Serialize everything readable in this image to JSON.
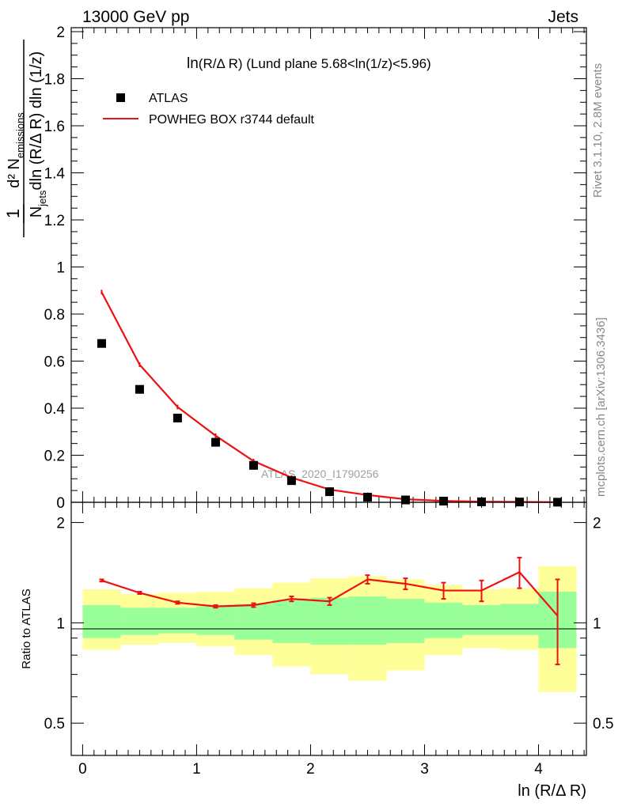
{
  "header": {
    "left": "13000 GeV pp",
    "right": "Jets"
  },
  "side_labels": {
    "rivet": "Rivet 3.1.10,  2.8M events",
    "mcplots": "mcplots.cern.ch [arXiv:1306.3436]"
  },
  "watermark": "ATLAS_2020_I1790256",
  "chart_data": [
    {
      "type": "scatter",
      "title_main": "ln",
      "title_rest": "(R/Δ R) (Lund plane 5.68<ln(1/z)<5.96)",
      "ylabel_num": "d² N",
      "ylabel_num_sub": "emissions",
      "ylabel_den": "N",
      "ylabel_den_sub": "jets",
      "ylabel_den_rest": "dln (R/Δ R) dln (1/z)",
      "ylabel_prefix": "1",
      "xlim": [
        -0.1,
        4.42
      ],
      "ylim": [
        0,
        2.0
      ],
      "yticks": [
        0.2,
        0.4,
        0.6,
        0.8,
        1,
        1.2,
        1.4,
        1.6,
        1.8,
        2
      ],
      "ytick_labels": [
        "0.2",
        "0.4",
        "0.6",
        "0.8",
        "1",
        "1.2",
        "1.4",
        "1.6",
        "1.8",
        "2"
      ],
      "ytick_zero_label": "0",
      "x": [
        0.167,
        0.5,
        0.833,
        1.167,
        1.5,
        1.833,
        2.167,
        2.5,
        2.833,
        3.167,
        3.5,
        3.833,
        4.167
      ],
      "series": [
        {
          "name": "ATLAS",
          "style": "markers",
          "color": "#000000",
          "values": [
            0.675,
            0.48,
            0.358,
            0.255,
            0.157,
            0.092,
            0.045,
            0.022,
            0.01,
            0.005,
            0.002,
            0.0012,
            0.0005
          ]
        },
        {
          "name": "POWHEG BOX r3744 default",
          "style": "line",
          "color": "#ee1111",
          "values": [
            0.893,
            0.585,
            0.405,
            0.283,
            0.175,
            0.105,
            0.054,
            0.031,
            0.013,
            0.006,
            0.0025,
            0.0018,
            0.0006
          ]
        }
      ],
      "legend": [
        "ATLAS",
        "POWHEG BOX r3744 default"
      ],
      "legend_position": "top-left"
    },
    {
      "type": "line",
      "ylabel": "Ratio to ATLAS",
      "xlabel": "ln (R/Δ R)",
      "scale": "log",
      "ylim": [
        0.4,
        2.3
      ],
      "yticks": [
        0.5,
        1,
        2
      ],
      "ytick_labels": [
        "0.5",
        "1",
        "2"
      ],
      "xticks": [
        0,
        1,
        2,
        3,
        4
      ],
      "xtick_labels": [
        "0",
        "1",
        "2",
        "3",
        "4"
      ],
      "bin_edges": [
        0,
        0.333,
        0.667,
        1.0,
        1.333,
        1.667,
        2.0,
        2.333,
        2.667,
        3.0,
        3.333,
        3.667,
        4.0,
        4.333
      ],
      "band_total": {
        "color": "#ffff99",
        "low": [
          0.83,
          0.86,
          0.87,
          0.85,
          0.8,
          0.74,
          0.7,
          0.67,
          0.72,
          0.8,
          0.84,
          0.83,
          0.62
        ],
        "high": [
          1.26,
          1.22,
          1.23,
          1.24,
          1.27,
          1.32,
          1.36,
          1.38,
          1.35,
          1.3,
          1.26,
          1.27,
          1.48
        ]
      },
      "band_stat": {
        "color": "#99ff99",
        "low": [
          0.9,
          0.92,
          0.93,
          0.92,
          0.89,
          0.87,
          0.86,
          0.86,
          0.87,
          0.9,
          0.92,
          0.92,
          0.84
        ],
        "high": [
          1.13,
          1.11,
          1.11,
          1.12,
          1.14,
          1.17,
          1.19,
          1.2,
          1.18,
          1.15,
          1.13,
          1.14,
          1.24
        ]
      },
      "reference": 1,
      "series": [
        {
          "name": "POWHEG BOX r3744 default",
          "color": "#ee1111",
          "x": [
            0.167,
            0.5,
            0.833,
            1.167,
            1.5,
            1.833,
            2.167,
            2.5,
            2.833,
            3.167,
            3.5,
            3.833,
            4.167
          ],
          "values": [
            1.34,
            1.23,
            1.15,
            1.12,
            1.13,
            1.18,
            1.16,
            1.35,
            1.31,
            1.25,
            1.25,
            1.42,
            1.05
          ],
          "err": [
            0.01,
            0.01,
            0.01,
            0.01,
            0.015,
            0.02,
            0.03,
            0.04,
            0.05,
            0.07,
            0.09,
            0.15,
            0.3
          ]
        }
      ]
    }
  ]
}
